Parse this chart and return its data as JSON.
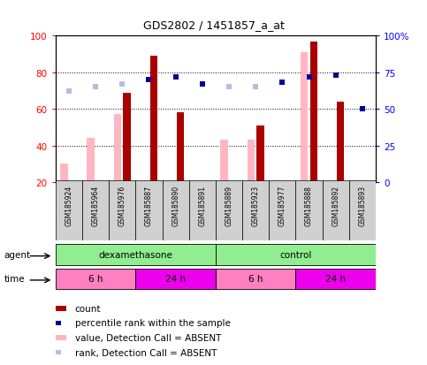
{
  "title": "GDS2802 / 1451857_a_at",
  "samples": [
    "GSM185924",
    "GSM185964",
    "GSM185976",
    "GSM185887",
    "GSM185890",
    "GSM185891",
    "GSM185889",
    "GSM185923",
    "GSM185977",
    "GSM185888",
    "GSM185892",
    "GSM185893"
  ],
  "count_values": [
    null,
    null,
    69,
    89,
    58,
    null,
    null,
    51,
    null,
    97,
    64,
    null
  ],
  "value_absent": [
    30,
    44,
    57,
    null,
    null,
    null,
    43,
    43,
    null,
    91,
    null,
    null
  ],
  "rank_absent_pct": [
    62,
    65,
    67,
    null,
    null,
    67,
    65,
    65,
    68,
    null,
    null,
    null
  ],
  "percentile_rank_pct": [
    null,
    null,
    null,
    70,
    72,
    67,
    null,
    null,
    68,
    72,
    73,
    50
  ],
  "count_color": "#AA0000",
  "value_absent_color": "#FFB6C1",
  "rank_absent_color": "#B0C0E0",
  "percentile_rank_color": "#000099",
  "agent_dexa": "dexamethasone",
  "agent_ctrl": "control",
  "agent_color": "#90EE90",
  "time_6h_color": "#FF80C0",
  "time_24h_color": "#EE00EE",
  "ylim_left": [
    20,
    100
  ],
  "ylim_right": [
    0,
    100
  ],
  "yticks_left": [
    20,
    40,
    60,
    80,
    100
  ],
  "yticks_right": [
    0,
    25,
    50,
    75,
    100
  ],
  "n_samples": 12
}
